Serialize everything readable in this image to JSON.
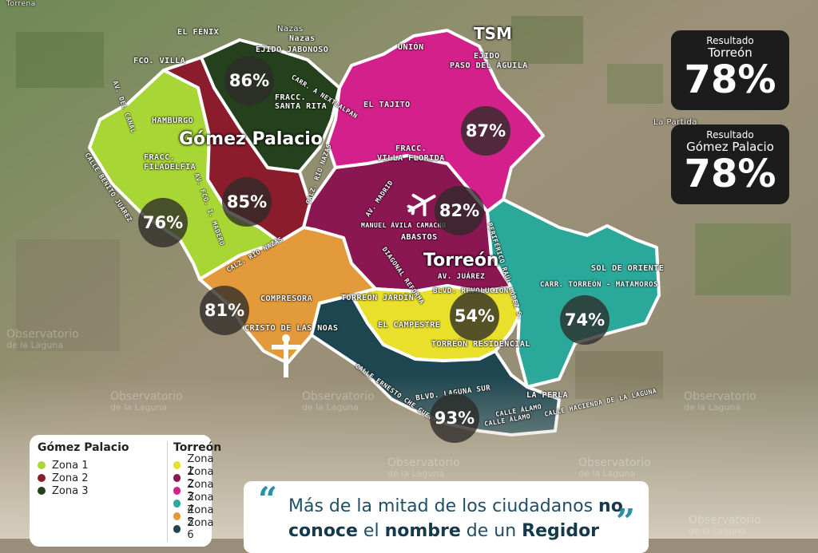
{
  "map": {
    "city_labels": {
      "gomez": "Gómez Palacio",
      "torreon": "Torreón",
      "tsm": "TSM"
    },
    "top_labels": [
      "Torrena",
      "Nazas",
      "Nazas"
    ],
    "place_labels": [
      "EL FÉNIX",
      "EJIDO JABONOSO",
      "FCO. VILLA",
      "UNIÓN",
      "EJIDO",
      "PASO DEL ÁGUILA",
      "HAMBURGO",
      "FRACC.",
      "FILADELFIA",
      "FRACC.",
      "SANTA RITA",
      "EL TAJITO",
      "FRACC.",
      "VILLA FLORIDA",
      "MANUEL ÁVILA CAMACHO",
      "ABASTOS",
      "AV. JUÁREZ",
      "BLVD. REVOLUCIÓN",
      "TORREÓN JARDÍN",
      "EL CAMPESTRE",
      "TORREÓN RESIDENCIAL",
      "COMPRESORA",
      "CRISTO DE LAS NOAS",
      "SOL DE ORIENTE",
      "CARR. TORREÓN - MATAMOROS",
      "LA PERLA",
      "BLVD. LAGUNA SUR",
      "CALLE ÁLAMO",
      "CALLE ÁLAMO",
      "CALLE HACIENDA DE LA LAGUNA",
      "CARR. A NEXTLALPAN",
      "CALLE BENITO JUÁREZ",
      "AV. DEL CANAL",
      "AV. FCO. I. MADERO",
      "CALZ. RÍO NAZAS",
      "CALZ. RÍO NAZAS",
      "AV. MADRID",
      "DIAGONAL REFORMA",
      "PERIFÉRICO RAÚL LÓPEZ S.",
      "CALLE ERNESTO CHE GUEVARA",
      "La Partida"
    ],
    "zone_percentages": [
      "86%",
      "85%",
      "76%",
      "81%",
      "87%",
      "82%",
      "54%",
      "74%",
      "93%"
    ]
  },
  "results": [
    {
      "label": "Resultado",
      "city": "Torreón",
      "value": "78%"
    },
    {
      "label": "Resultado",
      "city": "Gómez Palacio",
      "value": "78%"
    }
  ],
  "watermark": {
    "line1": "Observatorio",
    "line2": "de la Laguna"
  },
  "legend": {
    "gomez": {
      "title": "Gómez Palacio",
      "items": [
        {
          "label": "Zona 1",
          "color": "#a8d634"
        },
        {
          "label": "Zona 2",
          "color": "#8b1c2c"
        },
        {
          "label": "Zona 3",
          "color": "#24401c"
        }
      ]
    },
    "torreon": {
      "title": "Torreón",
      "items": [
        {
          "label": "Zona 1",
          "color": "#e8e02a"
        },
        {
          "label": "Zona 2",
          "color": "#8a1652"
        },
        {
          "label": "Zona 3",
          "color": "#d4208a"
        },
        {
          "label": "Zona 4",
          "color": "#2aa89a"
        },
        {
          "label": "Zona 5",
          "color": "#e39a3a"
        },
        {
          "label": "Zona 6",
          "color": "#1d4650"
        }
      ]
    }
  },
  "quote": {
    "part1": "Más de la mitad de los ciudadanos",
    "strong1": "no",
    "strong2": "conoce",
    "part2": "el",
    "strong3": "nombre",
    "part3": "de un",
    "strong4": "Regidor",
    "open_mark": "“",
    "close_mark": "”"
  }
}
